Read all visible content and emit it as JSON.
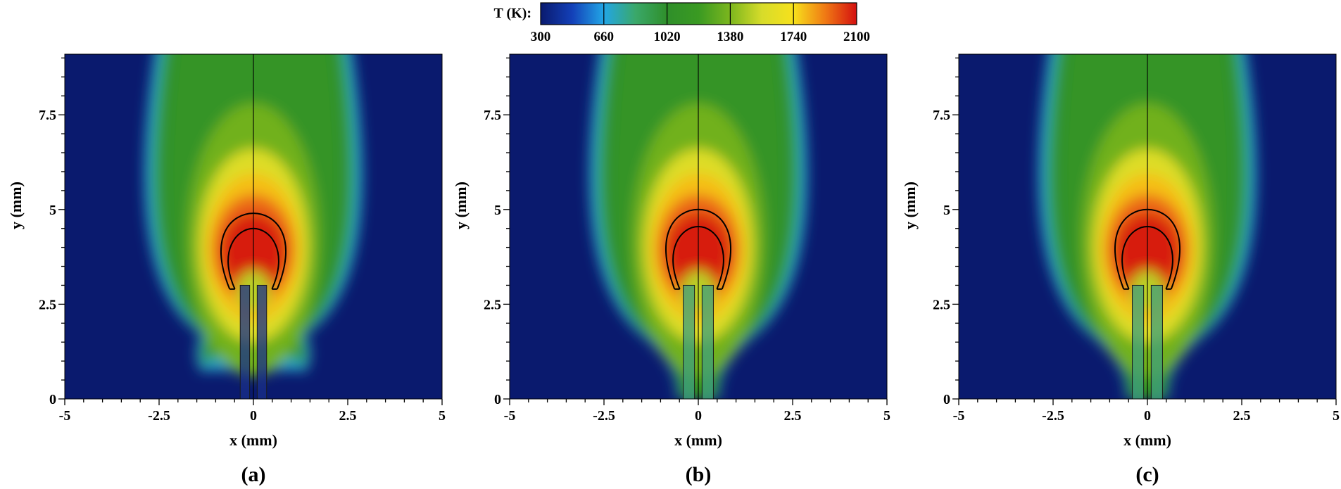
{
  "colorbar": {
    "label": "T (K):",
    "min": 300,
    "max": 2100,
    "ticks": [
      "300",
      "660",
      "1020",
      "1380",
      "1740",
      "2100"
    ],
    "stops": [
      {
        "t": 300,
        "color": "#0a1a6e"
      },
      {
        "t": 480,
        "color": "#1340b8"
      },
      {
        "t": 660,
        "color": "#22a6e6"
      },
      {
        "t": 840,
        "color": "#3aa86a"
      },
      {
        "t": 1020,
        "color": "#2f8f2a"
      },
      {
        "t": 1200,
        "color": "#3a9a22"
      },
      {
        "t": 1380,
        "color": "#7cb61e"
      },
      {
        "t": 1560,
        "color": "#d7dc2a"
      },
      {
        "t": 1740,
        "color": "#f7e11c"
      },
      {
        "t": 1920,
        "color": "#f07a14"
      },
      {
        "t": 2100,
        "color": "#d41010"
      }
    ]
  },
  "chart_data": [
    {
      "type": "heatmap",
      "panel_label": "(a)",
      "xlabel": "x (mm)",
      "ylabel": "y (mm)",
      "xlim": [
        -5,
        5
      ],
      "ylim": [
        0,
        9.1
      ],
      "xticks": [
        "-5",
        "-2.5",
        "0",
        "2.5",
        "5"
      ],
      "yticks": [
        "0",
        "2.5",
        "5",
        "7.5"
      ],
      "flame": {
        "center_x": 0,
        "outer_contour_top_y": 4.9,
        "inner_contour_top_y": 4.5,
        "contour_half_width": 1.05,
        "contour_bottom_y": 2.9,
        "peak_T": 2100
      },
      "inflow_tubes": [
        {
          "x_left": -0.35,
          "x_right": -0.1
        },
        {
          "x_left": 0.1,
          "x_right": 0.35
        }
      ],
      "tube_top_y": 3.0,
      "base_neck": "wide"
    },
    {
      "type": "heatmap",
      "panel_label": "(b)",
      "xlabel": "x (mm)",
      "ylabel": "y (mm)",
      "xlim": [
        -5,
        5
      ],
      "ylim": [
        0,
        9.1
      ],
      "xticks": [
        "-5",
        "-2.5",
        "0",
        "2.5",
        "5"
      ],
      "yticks": [
        "0",
        "2.5",
        "5",
        "7.5"
      ],
      "flame": {
        "center_x": 0,
        "outer_contour_top_y": 5.0,
        "inner_contour_top_y": 4.55,
        "contour_half_width": 1.05,
        "contour_bottom_y": 2.9,
        "peak_T": 2100
      },
      "inflow_tubes": [
        {
          "x_left": -0.4,
          "x_right": -0.1
        },
        {
          "x_left": 0.1,
          "x_right": 0.4
        }
      ],
      "tube_top_y": 3.0,
      "base_neck": "narrow"
    },
    {
      "type": "heatmap",
      "panel_label": "(c)",
      "xlabel": "x (mm)",
      "ylabel": "y (mm)",
      "xlim": [
        -5,
        5
      ],
      "ylim": [
        0,
        9.1
      ],
      "xticks": [
        "-5",
        "-2.5",
        "0",
        "2.5",
        "5"
      ],
      "yticks": [
        "0",
        "2.5",
        "5",
        "7.5"
      ],
      "flame": {
        "center_x": 0,
        "outer_contour_top_y": 5.0,
        "inner_contour_top_y": 4.55,
        "contour_half_width": 1.05,
        "contour_bottom_y": 2.9,
        "peak_T": 2100
      },
      "inflow_tubes": [
        {
          "x_left": -0.4,
          "x_right": -0.1
        },
        {
          "x_left": 0.1,
          "x_right": 0.4
        }
      ],
      "tube_top_y": 3.0,
      "base_neck": "narrow"
    }
  ]
}
